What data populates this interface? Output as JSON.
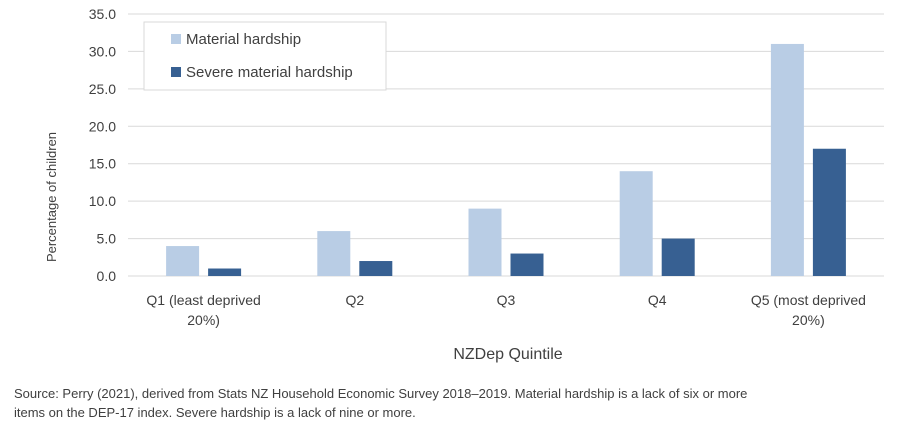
{
  "chart_data": {
    "type": "bar",
    "categories": [
      [
        "Q1 (least deprived",
        "20%)"
      ],
      [
        "Q2"
      ],
      [
        "Q3"
      ],
      [
        "Q4"
      ],
      [
        "Q5 (most deprived",
        "20%)"
      ]
    ],
    "series": [
      {
        "name": "Material hardship",
        "color": "#b9cde5",
        "values": [
          4,
          6,
          9,
          14,
          31
        ]
      },
      {
        "name": "Severe material hardship",
        "color": "#376092",
        "values": [
          1,
          2,
          3,
          5,
          17
        ]
      }
    ],
    "title": "",
    "xlabel": "NZDep Quintile",
    "ylabel": "Percentage of children",
    "ylim": [
      0,
      35
    ],
    "yticks": [
      "0.0",
      "5.0",
      "10.0",
      "15.0",
      "20.0",
      "25.0",
      "30.0",
      "35.0"
    ],
    "grid": "horizontal",
    "legend_position": "top-left",
    "gridline_color": "#d9d9d9"
  },
  "source_note": "Source: Perry (2021), derived from Stats NZ Household Economic Survey 2018–2019. Material hardship is a lack of six or more items on the DEP-17 index. Severe hardship is a lack of nine or more."
}
